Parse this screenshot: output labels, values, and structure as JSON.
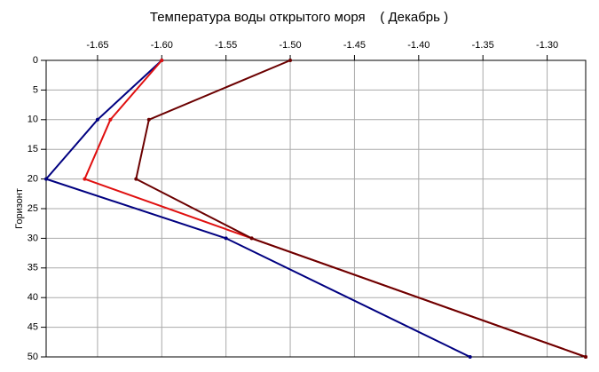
{
  "chart_data": {
    "type": "line",
    "orientation": "horizontal",
    "title": "Температура воды открытого моря    ( Декабрь )",
    "y_label": "Горизонт",
    "x": [
      0,
      10,
      20,
      30,
      50
    ],
    "series": [
      {
        "color": "#000080",
        "values": [
          -1.6,
          -1.65,
          -1.69,
          -1.55,
          -1.36
        ]
      },
      {
        "color": "#e01010",
        "values": [
          -1.6,
          -1.64,
          -1.66,
          -1.53,
          -1.27
        ]
      },
      {
        "color": "#6b0000",
        "values": [
          -1.5,
          -1.61,
          -1.62,
          -1.53,
          -1.27
        ]
      }
    ],
    "xlim": [
      -1.69,
      -1.27
    ],
    "xticks": [
      -1.65,
      {
        "value": -1.6,
        "label": "-1.60"
      },
      -1.55,
      {
        "value": -1.5,
        "label": "-1.50"
      },
      -1.45,
      {
        "value": -1.4,
        "label": "-1.40"
      },
      -1.35,
      {
        "value": -1.3,
        "label": "-1.30"
      }
    ],
    "ylim": [
      0,
      50
    ],
    "yticks": [
      0,
      5,
      10,
      15,
      20,
      25,
      30,
      35,
      40,
      45,
      50
    ],
    "grid": true
  }
}
